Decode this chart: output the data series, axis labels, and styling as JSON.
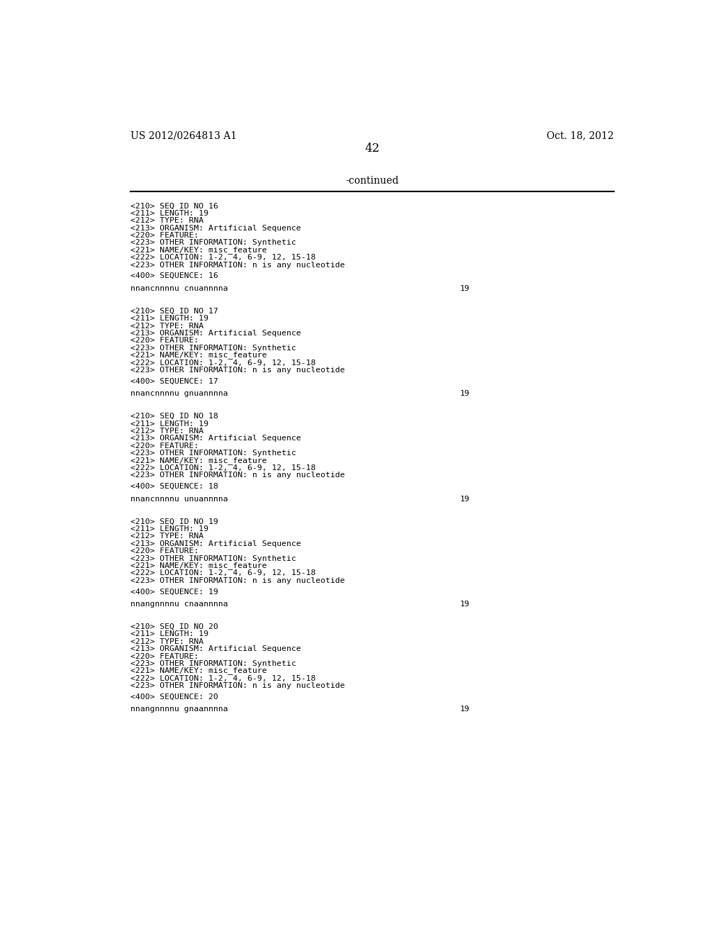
{
  "header_left": "US 2012/0264813 A1",
  "header_right": "Oct. 18, 2012",
  "page_number": "42",
  "continued_label": "-continued",
  "background_color": "#ffffff",
  "text_color": "#000000",
  "font_size_header": 10,
  "font_size_body": 8.5,
  "font_size_page": 12,
  "font_size_continued": 10,
  "entries": [
    {
      "seq_id": "16",
      "length": "19",
      "type": "RNA",
      "organism": "Artificial Sequence",
      "feature_lines": [
        "<220> FEATURE:",
        "<223> OTHER INFORMATION: Synthetic",
        "<221> NAME/KEY: misc_feature",
        "<222> LOCATION: 1-2, 4, 6-9, 12, 15-18",
        "<223> OTHER INFORMATION: n is any nucleotide"
      ],
      "sequence_num": "16",
      "sequence": "nnancnnnnu cnuannnna",
      "seq_length_label": "19"
    },
    {
      "seq_id": "17",
      "length": "19",
      "type": "RNA",
      "organism": "Artificial Sequence",
      "feature_lines": [
        "<220> FEATURE:",
        "<223> OTHER INFORMATION: Synthetic",
        "<221> NAME/KEY: misc_feature",
        "<222> LOCATION: 1-2, 4, 6-9, 12, 15-18",
        "<223> OTHER INFORMATION: n is any nucleotide"
      ],
      "sequence_num": "17",
      "sequence": "nnancnnnnu gnuannnna",
      "seq_length_label": "19"
    },
    {
      "seq_id": "18",
      "length": "19",
      "type": "RNA",
      "organism": "Artificial Sequence",
      "feature_lines": [
        "<220> FEATURE:",
        "<223> OTHER INFORMATION: Synthetic",
        "<221> NAME/KEY: misc_feature",
        "<222> LOCATION: 1-2, 4, 6-9, 12, 15-18",
        "<223> OTHER INFORMATION: n is any nucleotide"
      ],
      "sequence_num": "18",
      "sequence": "nnancnnnnu unuannnna",
      "seq_length_label": "19"
    },
    {
      "seq_id": "19",
      "length": "19",
      "type": "RNA",
      "organism": "Artificial Sequence",
      "feature_lines": [
        "<220> FEATURE:",
        "<223> OTHER INFORMATION: Synthetic",
        "<221> NAME/KEY: misc_feature",
        "<222> LOCATION: 1-2, 4, 6-9, 12, 15-18",
        "<223> OTHER INFORMATION: n is any nucleotide"
      ],
      "sequence_num": "19",
      "sequence": "nnangnnnnu cnaannnna",
      "seq_length_label": "19"
    },
    {
      "seq_id": "20",
      "length": "19",
      "type": "RNA",
      "organism": "Artificial Sequence",
      "feature_lines": [
        "<220> FEATURE:",
        "<223> OTHER INFORMATION: Synthetic",
        "<221> NAME/KEY: misc_feature",
        "<222> LOCATION: 1-2, 4, 6-9, 12, 15-18",
        "<223> OTHER INFORMATION: n is any nucleotide"
      ],
      "sequence_num": "20",
      "sequence": "nnangnnnnu gnaannnna",
      "seq_length_label": "19"
    }
  ]
}
